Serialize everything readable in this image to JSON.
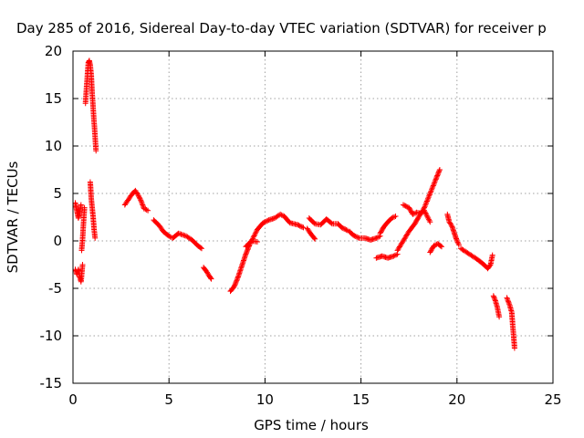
{
  "chart_data": {
    "type": "scatter",
    "title": "Day 285 of 2016, Sidereal Day-to-day VTEC variation (SDTVAR) for receiver p",
    "xlabel": "GPS time / hours",
    "ylabel": "SDTVAR / TECUs",
    "xlim": [
      0,
      25
    ],
    "ylim": [
      -15,
      20
    ],
    "xticks": [
      "0",
      "5",
      "10",
      "15",
      "20",
      "25"
    ],
    "yticks": [
      "-15",
      "-10",
      "-5",
      "0",
      "5",
      "10",
      "15",
      "20"
    ],
    "grid": true,
    "marker": "plus",
    "color": "#ff0000",
    "series": [
      {
        "segments": [
          [
            [
              0.12,
              4.0
            ],
            [
              0.2,
              3.2
            ],
            [
              0.28,
              2.4
            ],
            [
              0.35,
              3.0
            ],
            [
              0.42,
              3.8
            ]
          ],
          [
            [
              0.12,
              -3.0
            ],
            [
              0.2,
              -3.5
            ],
            [
              0.28,
              -3.0
            ],
            [
              0.35,
              -3.8
            ],
            [
              0.42,
              -4.3
            ],
            [
              0.5,
              -2.5
            ]
          ],
          [
            [
              0.45,
              -1.0
            ],
            [
              0.5,
              0.2
            ],
            [
              0.55,
              2.0
            ],
            [
              0.6,
              3.5
            ]
          ],
          [
            [
              0.65,
              14.5
            ],
            [
              0.7,
              16.0
            ],
            [
              0.75,
              17.5
            ],
            [
              0.8,
              18.8
            ],
            [
              0.85,
              19.0
            ],
            [
              0.9,
              18.5
            ],
            [
              0.95,
              17.5
            ],
            [
              1.0,
              15.5
            ],
            [
              1.05,
              14.0
            ],
            [
              1.1,
              12.5
            ],
            [
              1.15,
              11.0
            ],
            [
              1.2,
              9.5
            ]
          ],
          [
            [
              0.9,
              6.2
            ],
            [
              0.95,
              4.5
            ],
            [
              1.0,
              3.5
            ],
            [
              1.05,
              2.5
            ],
            [
              1.1,
              1.2
            ],
            [
              1.15,
              0.3
            ]
          ],
          [
            [
              2.7,
              3.8
            ],
            [
              2.9,
              4.4
            ],
            [
              3.1,
              5.0
            ],
            [
              3.25,
              5.3
            ],
            [
              3.4,
              4.8
            ],
            [
              3.55,
              4.2
            ],
            [
              3.7,
              3.4
            ],
            [
              3.9,
              3.2
            ]
          ],
          [
            [
              4.2,
              2.2
            ],
            [
              4.5,
              1.6
            ],
            [
              4.7,
              1.0
            ],
            [
              5.0,
              0.5
            ],
            [
              5.2,
              0.3
            ],
            [
              5.5,
              0.8
            ],
            [
              5.9,
              0.5
            ],
            [
              6.2,
              0.1
            ],
            [
              6.5,
              -0.5
            ],
            [
              6.7,
              -0.8
            ]
          ],
          [
            [
              6.8,
              -2.8
            ],
            [
              6.95,
              -3.2
            ],
            [
              7.1,
              -3.7
            ],
            [
              7.2,
              -4.0
            ]
          ],
          [
            [
              8.2,
              -5.3
            ],
            [
              8.4,
              -4.8
            ],
            [
              8.6,
              -3.8
            ],
            [
              8.8,
              -2.6
            ],
            [
              9.0,
              -1.4
            ],
            [
              9.2,
              -0.4
            ],
            [
              9.4,
              0.4
            ],
            [
              9.6,
              1.2
            ],
            [
              9.9,
              1.9
            ],
            [
              10.2,
              2.2
            ],
            [
              10.5,
              2.4
            ],
            [
              10.8,
              2.8
            ],
            [
              11.0,
              2.6
            ],
            [
              11.3,
              1.9
            ],
            [
              11.7,
              1.7
            ],
            [
              12.0,
              1.4
            ]
          ],
          [
            [
              9.0,
              -0.6
            ],
            [
              9.3,
              0.0
            ],
            [
              9.6,
              -0.1
            ]
          ],
          [
            [
              12.2,
              1.3
            ],
            [
              12.4,
              0.7
            ],
            [
              12.6,
              0.2
            ]
          ],
          [
            [
              12.3,
              2.4
            ],
            [
              12.6,
              1.8
            ],
            [
              12.9,
              1.7
            ],
            [
              13.2,
              2.3
            ],
            [
              13.5,
              1.8
            ],
            [
              13.8,
              1.8
            ],
            [
              14.0,
              1.4
            ],
            [
              14.3,
              1.1
            ]
          ],
          [
            [
              14.4,
              1.0
            ],
            [
              14.6,
              0.6
            ],
            [
              14.9,
              0.3
            ],
            [
              15.2,
              0.3
            ],
            [
              15.5,
              0.1
            ],
            [
              15.8,
              0.3
            ],
            [
              16.0,
              0.5
            ]
          ],
          [
            [
              16.0,
              0.8
            ],
            [
              16.2,
              1.5
            ],
            [
              16.4,
              2.0
            ],
            [
              16.6,
              2.4
            ],
            [
              16.8,
              2.6
            ]
          ],
          [
            [
              15.8,
              -1.8
            ],
            [
              16.1,
              -1.6
            ],
            [
              16.4,
              -1.8
            ],
            [
              16.7,
              -1.6
            ],
            [
              16.9,
              -1.4
            ]
          ],
          [
            [
              16.9,
              -1.0
            ],
            [
              17.2,
              0.0
            ],
            [
              17.5,
              1.0
            ],
            [
              17.8,
              1.8
            ],
            [
              18.0,
              2.5
            ],
            [
              18.3,
              3.5
            ],
            [
              18.6,
              5.0
            ],
            [
              18.9,
              6.5
            ],
            [
              19.1,
              7.5
            ]
          ],
          [
            [
              17.2,
              3.8
            ],
            [
              17.5,
              3.5
            ],
            [
              17.7,
              2.8
            ],
            [
              17.9,
              3.0
            ],
            [
              18.1,
              2.9
            ],
            [
              18.3,
              3.2
            ],
            [
              18.5,
              2.4
            ],
            [
              18.6,
              2.0
            ]
          ],
          [
            [
              18.6,
              -1.2
            ],
            [
              18.8,
              -0.5
            ],
            [
              19.0,
              -0.3
            ],
            [
              19.2,
              -0.6
            ]
          ],
          [
            [
              19.5,
              2.8
            ],
            [
              19.6,
              2.0
            ],
            [
              19.75,
              1.5
            ],
            [
              19.9,
              0.6
            ],
            [
              20.0,
              0.0
            ],
            [
              20.1,
              -0.4
            ]
          ],
          [
            [
              20.2,
              -0.8
            ],
            [
              20.5,
              -1.2
            ],
            [
              20.8,
              -1.6
            ],
            [
              21.1,
              -2.0
            ],
            [
              21.4,
              -2.5
            ],
            [
              21.6,
              -2.9
            ],
            [
              21.75,
              -2.5
            ],
            [
              21.85,
              -1.5
            ]
          ],
          [
            [
              21.9,
              -5.8
            ],
            [
              22.0,
              -6.3
            ],
            [
              22.1,
              -7.0
            ],
            [
              22.2,
              -8.0
            ]
          ],
          [
            [
              22.6,
              -6.0
            ],
            [
              22.75,
              -6.8
            ],
            [
              22.85,
              -7.5
            ],
            [
              22.9,
              -8.8
            ],
            [
              22.95,
              -10.0
            ],
            [
              23.0,
              -11.3
            ]
          ]
        ]
      }
    ]
  }
}
